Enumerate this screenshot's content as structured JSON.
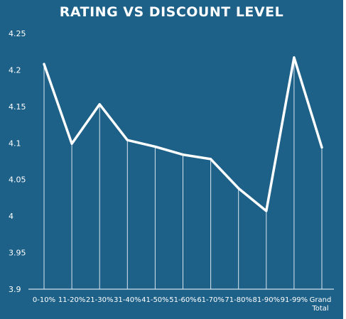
{
  "chart_data": {
    "type": "line",
    "title": "RATING VS DISCOUNT LEVEL",
    "xlabel": "",
    "ylabel": "",
    "categories": [
      "0-10%",
      "11-20%",
      "21-30%",
      "31-40%",
      "41-50%",
      "51-60%",
      "61-70%",
      "71-80%",
      "81-90%",
      "91-99%",
      "Grand Total"
    ],
    "series": [
      {
        "values": [
          4.208,
          4.099,
          4.153,
          4.104,
          4.095,
          4.084,
          4.078,
          4.038,
          4.007,
          4.217,
          4.094
        ]
      }
    ],
    "ylim": [
      3.9,
      4.25
    ],
    "yticks": [
      "3.9",
      "3.95",
      "4",
      "4.05",
      "4.1",
      "4.15",
      "4.2",
      "4.25"
    ],
    "grid": false,
    "drop_lines": true,
    "colors": {
      "background": "#1e6188",
      "line": "#ffffff",
      "text": "#ffffff"
    }
  }
}
